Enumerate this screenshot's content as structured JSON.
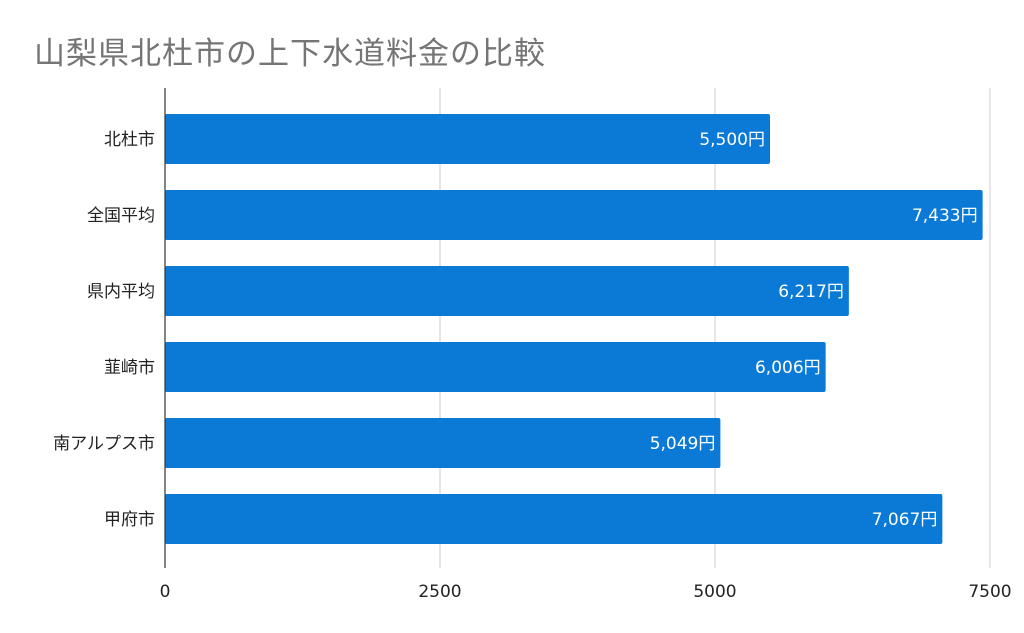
{
  "chart_data": {
    "type": "bar",
    "orientation": "horizontal",
    "title": "山梨県北杜市の上下水道料金の比較",
    "categories": [
      "北杜市",
      "全国平均",
      "県内平均",
      "韮崎市",
      "南アルプス市",
      "甲府市"
    ],
    "values": [
      5500,
      7433,
      6217,
      6006,
      5049,
      7067
    ],
    "data_labels": [
      "5,500円",
      "7,433円",
      "6,217円",
      "6,006円",
      "5,049円",
      "7,067円"
    ],
    "xticks": [
      "0",
      "2500",
      "5000",
      "7500"
    ],
    "xtick_values": [
      0,
      2500,
      5000,
      7500
    ],
    "xlim": [
      0,
      7500
    ],
    "xlabel": "",
    "ylabel": "",
    "grid": "vertical",
    "legend": "none",
    "colors": {
      "bar": "#0b7ad6",
      "grid": "#cccccc",
      "axis": "#333333",
      "title": "#757575"
    }
  }
}
